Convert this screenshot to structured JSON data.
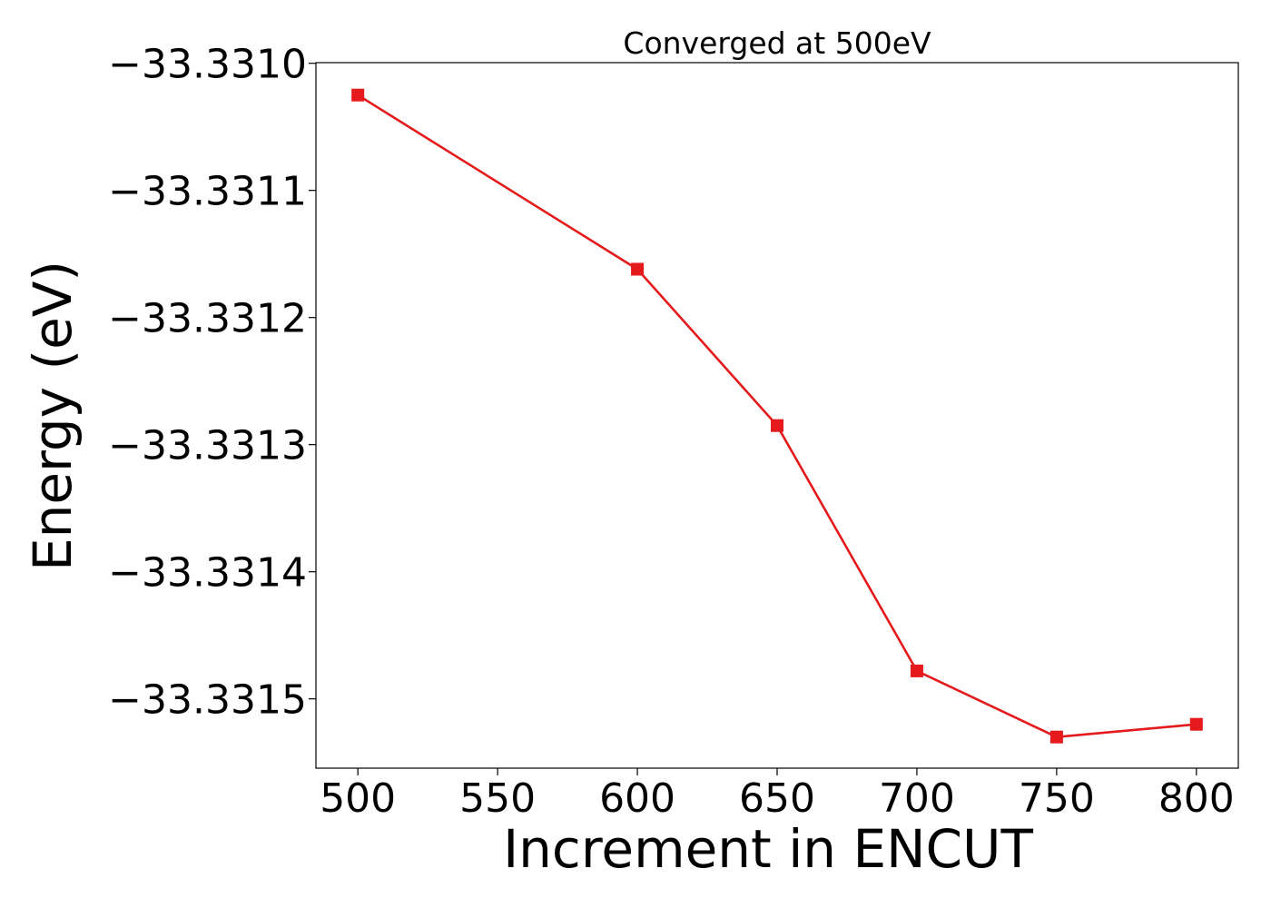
{
  "chart_data": {
    "type": "line",
    "title": "Converged at 500eV",
    "xlabel": "Increment in ENCUT",
    "ylabel": "Energy (eV)",
    "x": [
      500,
      600,
      650,
      700,
      750,
      800
    ],
    "series": [
      {
        "values": [
          -33.331025,
          -33.331162,
          -33.331285,
          -33.331478,
          -33.33153,
          -33.33152
        ],
        "color": "#e41a1c",
        "marker": "square"
      }
    ],
    "xticks": [
      500,
      550,
      600,
      650,
      700,
      750,
      800
    ],
    "xtick_labels": [
      "500",
      "550",
      "600",
      "650",
      "700",
      "750",
      "800"
    ],
    "yticks": [
      -33.331,
      -33.3311,
      -33.3312,
      -33.3313,
      -33.3314,
      -33.3315
    ],
    "ytick_labels": [
      "−33.3310",
      "−33.3311",
      "−33.3312",
      "−33.3313",
      "−33.3314",
      "−33.3315"
    ],
    "xlim": [
      485,
      815
    ],
    "ylim": [
      -33.3315545,
      -33.3309995
    ],
    "grid": false,
    "legend": "none"
  }
}
